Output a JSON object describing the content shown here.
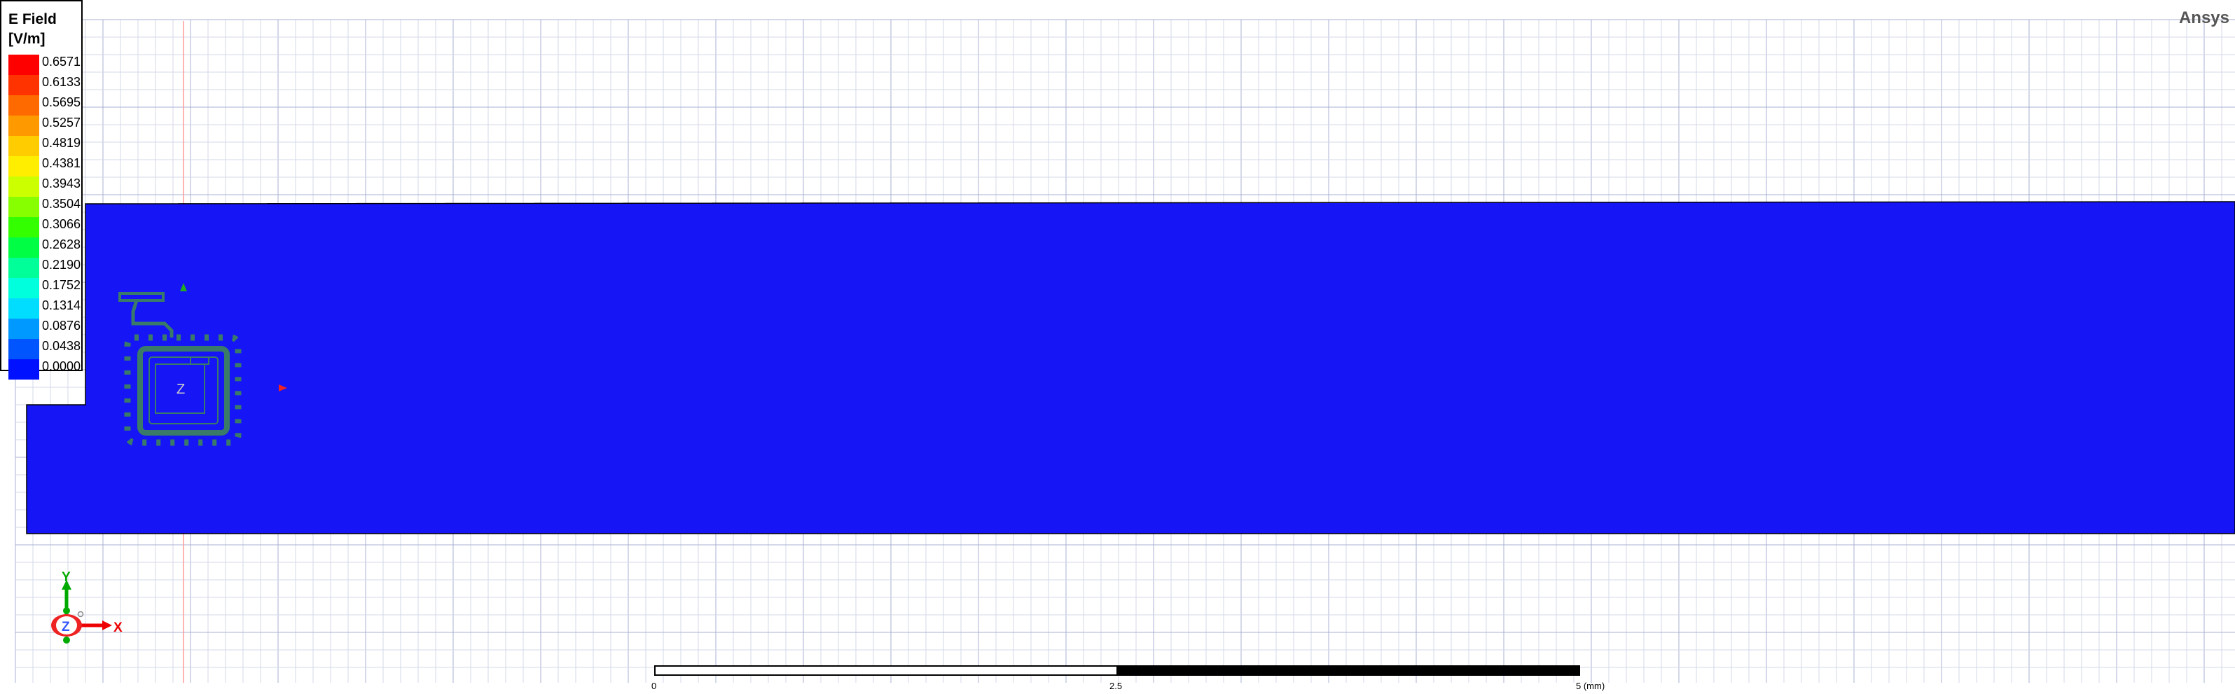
{
  "legend": {
    "title": "E Field",
    "unit": "[V/m]",
    "ticks": [
      "0.6571",
      "0.6133",
      "0.5695",
      "0.5257",
      "0.4819",
      "0.4381",
      "0.3943",
      "0.3504",
      "0.3066",
      "0.2628",
      "0.2190",
      "0.1752",
      "0.1314",
      "0.0876",
      "0.0438",
      "0.0000"
    ],
    "colors": [
      "#ff0000",
      "#ff3300",
      "#ff6a00",
      "#ff9900",
      "#ffcc00",
      "#ffee00",
      "#ccff00",
      "#88ff00",
      "#33ff00",
      "#00ff44",
      "#00ff99",
      "#00ffdd",
      "#00ddff",
      "#0099ff",
      "#0055ff",
      "#0011ff"
    ]
  },
  "brand": "Ansys",
  "scale_bar": {
    "labels": [
      "0",
      "2.5",
      "5 (mm)"
    ]
  },
  "triad": {
    "x": "X",
    "y": "Y",
    "z": "Z"
  },
  "colors": {
    "field": "#1515f5",
    "coil": "#3a7a68",
    "grid": "#c8cce0",
    "origin_line": "#ff9a9a"
  }
}
